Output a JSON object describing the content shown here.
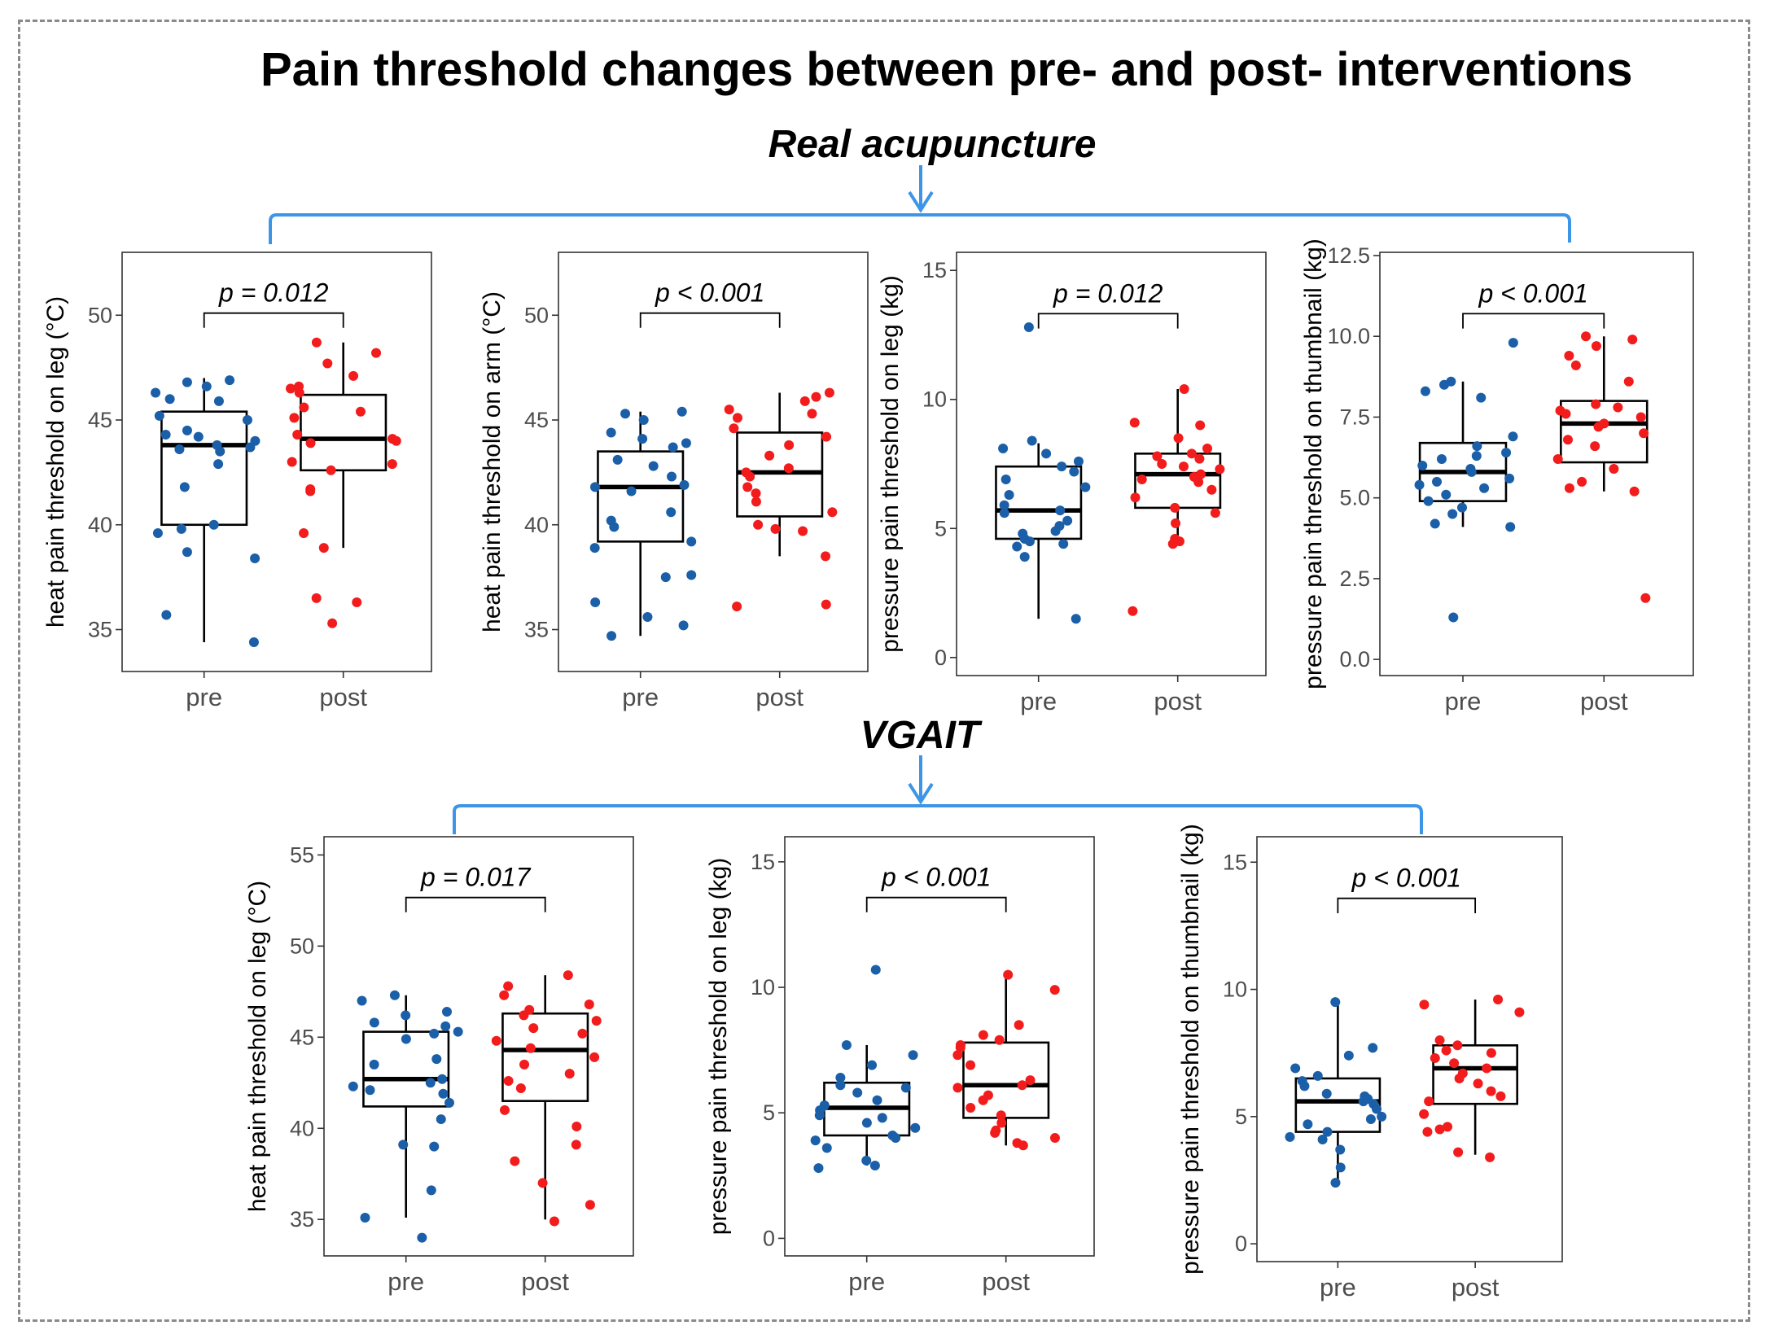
{
  "title": "Pain threshold changes between pre- and post- interventions",
  "groups": [
    {
      "label": "Real acupuncture"
    },
    {
      "label": "VGAIT"
    }
  ],
  "colors": {
    "pre": "#1a5fa8",
    "post": "#f21c1c",
    "bracket": "#3d95e8",
    "frame": "#8a8a8a"
  },
  "chart_data": [
    {
      "type": "box",
      "group": "Real acupuncture",
      "ylabel": "heat pain threshold on leg (°C)",
      "categories": [
        "pre",
        "post"
      ],
      "ylim": [
        33,
        53
      ],
      "yticks": [
        35,
        40,
        45,
        50
      ],
      "tick_format": "int",
      "annotation": "p = 0.012",
      "boxes": [
        {
          "name": "pre",
          "whisker_low": 34.4,
          "q1": 40.0,
          "median": 43.8,
          "q3": 45.4,
          "whisker_high": 47.0,
          "points": [
            46.9,
            46.6,
            46.8,
            46.3,
            46.0,
            45.9,
            45.2,
            45.0,
            44.5,
            44.3,
            44.2,
            44.0,
            43.8,
            43.7,
            43.6,
            43.5,
            42.9,
            41.8,
            40.0,
            39.8,
            39.6,
            38.7,
            38.4,
            35.7,
            34.4
          ]
        },
        {
          "name": "post",
          "whisker_low": 38.9,
          "q1": 42.6,
          "median": 44.1,
          "q3": 46.2,
          "whisker_high": 48.7,
          "points": [
            48.7,
            48.2,
            47.7,
            47.1,
            46.6,
            46.5,
            46.3,
            45.6,
            45.4,
            45.1,
            44.3,
            44.1,
            44.0,
            43.9,
            43.0,
            42.9,
            42.6,
            41.7,
            41.6,
            39.6,
            38.9,
            36.5,
            36.3,
            35.3
          ]
        }
      ]
    },
    {
      "type": "box",
      "group": "Real acupuncture",
      "ylabel": "heat pain threshold on arm (°C)",
      "categories": [
        "pre",
        "post"
      ],
      "ylim": [
        33,
        53
      ],
      "yticks": [
        35,
        40,
        45,
        50
      ],
      "tick_format": "int",
      "annotation": "p < 0.001",
      "boxes": [
        {
          "name": "pre",
          "whisker_low": 34.7,
          "q1": 39.2,
          "median": 41.8,
          "q3": 43.5,
          "whisker_high": 45.4,
          "points": [
            45.4,
            45.3,
            45.0,
            44.4,
            44.1,
            43.9,
            43.7,
            43.1,
            42.8,
            42.3,
            41.9,
            41.8,
            41.6,
            40.6,
            40.2,
            39.9,
            39.2,
            38.9,
            37.6,
            37.5,
            36.3,
            35.6,
            35.2,
            34.7
          ]
        },
        {
          "name": "post",
          "whisker_low": 38.5,
          "q1": 40.4,
          "median": 42.5,
          "q3": 44.4,
          "whisker_high": 46.3,
          "points": [
            46.3,
            46.1,
            45.9,
            45.5,
            45.3,
            45.1,
            44.6,
            44.2,
            43.8,
            43.3,
            42.7,
            42.5,
            42.3,
            41.8,
            41.5,
            41.1,
            40.6,
            40.0,
            39.8,
            39.7,
            38.5,
            36.2,
            36.1
          ]
        }
      ]
    },
    {
      "type": "box",
      "group": "Real acupuncture",
      "ylabel": "pressure pain threshold on leg (kg)",
      "categories": [
        "pre",
        "post"
      ],
      "ylim": [
        -0.7,
        15.7
      ],
      "yticks": [
        0,
        5,
        10,
        15
      ],
      "tick_format": "int",
      "annotation": "p = 0.012",
      "boxes": [
        {
          "name": "pre",
          "whisker_low": 1.5,
          "q1": 4.6,
          "median": 5.7,
          "q3": 7.4,
          "whisker_high": 8.3,
          "points": [
            12.8,
            8.4,
            8.1,
            7.9,
            7.6,
            7.4,
            7.2,
            6.9,
            6.6,
            6.3,
            5.9,
            5.7,
            5.6,
            5.3,
            5.1,
            4.9,
            4.8,
            4.6,
            4.5,
            4.4,
            4.3,
            3.9,
            1.5
          ]
        },
        {
          "name": "post",
          "whisker_low": 4.4,
          "q1": 5.8,
          "median": 7.1,
          "q3": 7.9,
          "whisker_high": 10.4,
          "points": [
            10.4,
            9.1,
            9.0,
            8.5,
            8.1,
            7.9,
            7.8,
            7.7,
            7.5,
            7.4,
            7.3,
            7.1,
            7.0,
            6.9,
            6.8,
            6.5,
            6.2,
            5.8,
            5.6,
            5.2,
            4.6,
            4.5,
            4.4,
            1.8
          ]
        }
      ]
    },
    {
      "type": "box",
      "group": "Real acupuncture",
      "ylabel": "pressure pain threshold on thumbnail (kg)",
      "categories": [
        "pre",
        "post"
      ],
      "ylim": [
        -0.5,
        12.6
      ],
      "yticks": [
        0.0,
        2.5,
        5.0,
        7.5,
        10.0,
        12.5
      ],
      "tick_format": "one",
      "annotation": "p < 0.001",
      "boxes": [
        {
          "name": "pre",
          "whisker_low": 4.1,
          "q1": 4.9,
          "median": 5.8,
          "q3": 6.7,
          "whisker_high": 8.6,
          "points": [
            9.8,
            8.6,
            8.5,
            8.3,
            8.1,
            6.9,
            6.6,
            6.4,
            6.3,
            6.2,
            6.0,
            5.9,
            5.8,
            5.6,
            5.5,
            5.4,
            5.3,
            5.1,
            4.9,
            4.7,
            4.5,
            4.2,
            4.1,
            1.3
          ]
        },
        {
          "name": "post",
          "whisker_low": 5.2,
          "q1": 6.1,
          "median": 7.3,
          "q3": 8.0,
          "whisker_high": 10.0,
          "points": [
            10.0,
            9.9,
            9.7,
            9.4,
            9.1,
            8.6,
            7.9,
            7.8,
            7.7,
            7.6,
            7.5,
            7.3,
            7.2,
            7.0,
            6.8,
            6.6,
            6.2,
            5.9,
            5.5,
            5.3,
            5.2,
            1.9
          ]
        }
      ]
    },
    {
      "type": "box",
      "group": "VGAIT",
      "ylabel": "heat pain threshold on leg (°C)",
      "categories": [
        "pre",
        "post"
      ],
      "ylim": [
        33,
        56
      ],
      "yticks": [
        35,
        40,
        45,
        50,
        55
      ],
      "tick_format": "int",
      "annotation": "p = 0.017",
      "boxes": [
        {
          "name": "pre",
          "whisker_low": 35.1,
          "q1": 41.2,
          "median": 42.7,
          "q3": 45.3,
          "whisker_high": 47.3,
          "points": [
            47.3,
            47.0,
            46.4,
            46.2,
            45.8,
            45.6,
            45.3,
            45.2,
            44.9,
            43.8,
            43.5,
            42.7,
            42.5,
            42.3,
            42.1,
            41.9,
            41.4,
            40.5,
            39.1,
            39.0,
            36.6,
            35.1,
            34.0
          ]
        },
        {
          "name": "post",
          "whisker_low": 35.0,
          "q1": 41.5,
          "median": 44.3,
          "q3": 46.3,
          "whisker_high": 48.4,
          "points": [
            48.4,
            47.8,
            47.3,
            46.8,
            46.5,
            46.2,
            45.9,
            45.5,
            45.2,
            44.8,
            44.4,
            43.9,
            43.5,
            43.0,
            42.6,
            42.2,
            41.0,
            40.1,
            39.1,
            38.2,
            37.0,
            35.8,
            34.9
          ]
        }
      ]
    },
    {
      "type": "box",
      "group": "VGAIT",
      "ylabel": "pressure pain threshold on leg (kg)",
      "categories": [
        "pre",
        "post"
      ],
      "ylim": [
        -0.7,
        16.0
      ],
      "yticks": [
        0,
        5,
        10,
        15
      ],
      "tick_format": "int",
      "annotation": "p < 0.001",
      "boxes": [
        {
          "name": "pre",
          "whisker_low": 2.9,
          "q1": 4.1,
          "median": 5.2,
          "q3": 6.2,
          "whisker_high": 7.7,
          "points": [
            10.7,
            7.7,
            7.3,
            6.9,
            6.4,
            6.1,
            6.0,
            5.8,
            5.5,
            5.3,
            5.1,
            4.9,
            4.8,
            4.6,
            4.4,
            4.1,
            4.0,
            3.9,
            3.6,
            3.1,
            2.9,
            2.8
          ]
        },
        {
          "name": "post",
          "whisker_low": 3.7,
          "q1": 4.8,
          "median": 6.1,
          "q3": 7.8,
          "whisker_high": 10.5,
          "points": [
            10.5,
            9.9,
            8.5,
            8.1,
            7.9,
            7.7,
            7.6,
            7.3,
            6.9,
            6.3,
            6.1,
            6.0,
            5.7,
            5.5,
            5.2,
            4.9,
            4.6,
            4.3,
            4.2,
            4.0,
            3.8,
            3.7
          ]
        }
      ]
    },
    {
      "type": "box",
      "group": "VGAIT",
      "ylabel": "pressure pain threshold on thumbnail (kg)",
      "categories": [
        "pre",
        "post"
      ],
      "ylim": [
        -0.7,
        16.0
      ],
      "yticks": [
        0,
        5,
        10,
        15
      ],
      "tick_format": "int",
      "annotation": "p < 0.001",
      "boxes": [
        {
          "name": "pre",
          "whisker_low": 2.5,
          "q1": 4.4,
          "median": 5.6,
          "q3": 6.5,
          "whisker_high": 9.5,
          "points": [
            9.5,
            7.7,
            7.4,
            6.9,
            6.6,
            6.4,
            6.2,
            5.9,
            5.8,
            5.7,
            5.6,
            5.5,
            5.3,
            5.0,
            4.9,
            4.7,
            4.4,
            4.2,
            4.1,
            3.7,
            3.0,
            2.4
          ]
        },
        {
          "name": "post",
          "whisker_low": 3.5,
          "q1": 5.5,
          "median": 6.9,
          "q3": 7.8,
          "whisker_high": 9.6,
          "points": [
            9.6,
            9.4,
            9.1,
            8.0,
            7.8,
            7.6,
            7.5,
            7.3,
            7.1,
            6.9,
            6.7,
            6.5,
            6.3,
            6.0,
            5.8,
            5.6,
            5.1,
            4.6,
            4.5,
            4.4,
            3.6,
            3.4
          ]
        }
      ]
    }
  ]
}
